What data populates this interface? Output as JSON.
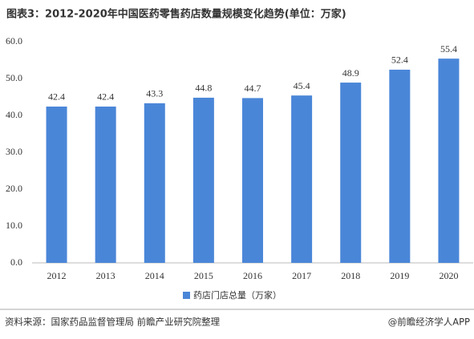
{
  "chart_data": {
    "type": "bar",
    "title": "图表3：2012-2020年中国医药零售药店数量规模变化趋势(单位：万家)",
    "categories": [
      "2012",
      "2013",
      "2014",
      "2015",
      "2016",
      "2017",
      "2018",
      "2019",
      "2020"
    ],
    "series": [
      {
        "name": "药店门店总量（万家）",
        "color": "#4a86d8",
        "values": [
          42.4,
          42.4,
          43.3,
          44.8,
          44.7,
          45.4,
          48.9,
          52.4,
          55.4
        ]
      }
    ],
    "ylim": [
      0,
      60
    ],
    "yticks": [
      {
        "value": 0,
        "label": "0.0"
      },
      {
        "value": 10,
        "label": "10.0"
      },
      {
        "value": 20,
        "label": "20.0"
      },
      {
        "value": 30,
        "label": "30.0"
      },
      {
        "value": 40,
        "label": "40.0"
      },
      {
        "value": 50,
        "label": "50.0"
      },
      {
        "value": 60,
        "label": "60.0"
      }
    ],
    "grid": false,
    "source": "资料来源：国家药品监督管理局 前瞻产业研究院整理",
    "credit": "@前瞻经济学人APP"
  }
}
